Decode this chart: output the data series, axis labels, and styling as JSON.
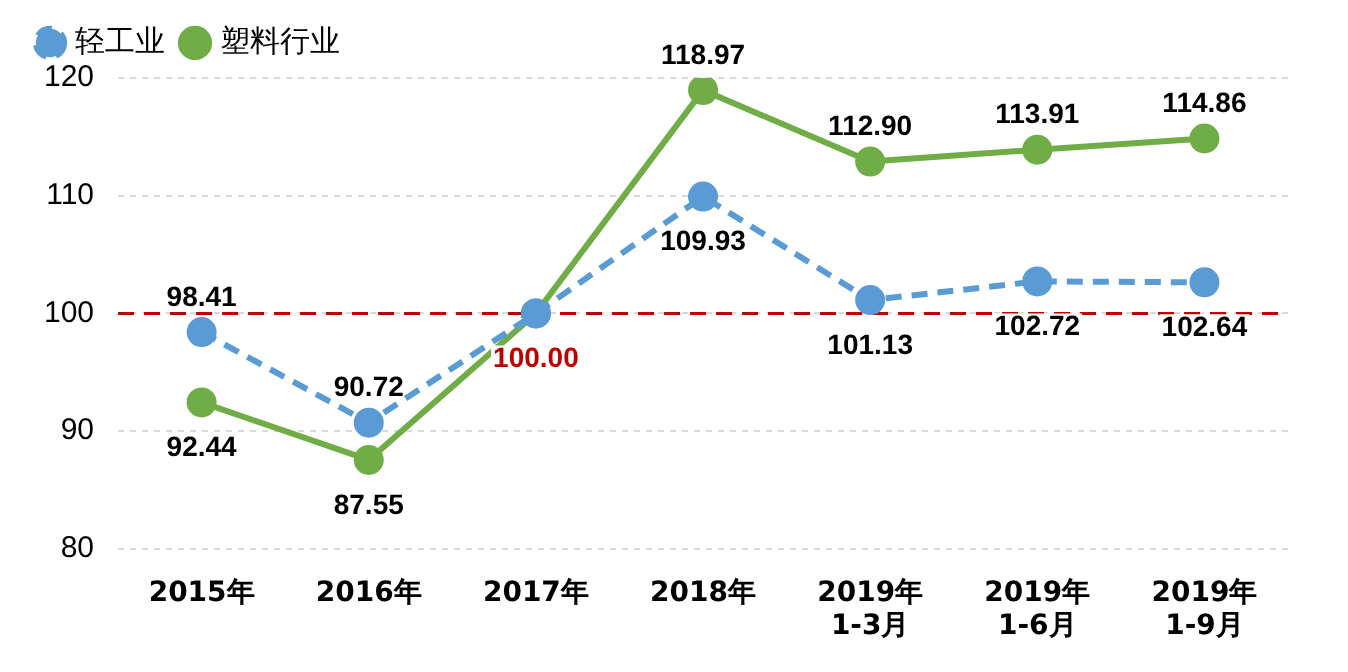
{
  "chart_data": {
    "type": "line",
    "categories": [
      "2015年",
      "2016年",
      "2017年",
      "2018年",
      "2019年\n1-3月",
      "2019年\n1-6月",
      "2019年\n1-9月"
    ],
    "series": [
      {
        "name": "轻工业",
        "color": "#5b9bd5",
        "line_style": "dashed",
        "values": [
          98.41,
          90.72,
          100.0,
          109.93,
          101.13,
          102.72,
          102.64
        ],
        "value_labels": [
          "98.41",
          "90.72",
          "100.00",
          "109.93",
          "101.13",
          "102.72",
          "102.64"
        ]
      },
      {
        "name": "塑料行业",
        "color": "#70ad47",
        "line_style": "solid",
        "values": [
          92.44,
          87.55,
          100.0,
          118.97,
          112.9,
          113.91,
          114.86
        ],
        "value_labels": [
          "92.44",
          "87.55",
          null,
          "118.97",
          "112.90",
          "113.91",
          "114.86"
        ]
      }
    ],
    "ylim": [
      80,
      120
    ],
    "yticks": [
      80,
      90,
      100,
      110,
      120
    ],
    "grid": "y",
    "legend": "top left",
    "marker": "circle",
    "ref_lines": [
      {
        "axis": "y",
        "value": 100,
        "color": "#c00000",
        "line_style": "dashed"
      }
    ]
  }
}
